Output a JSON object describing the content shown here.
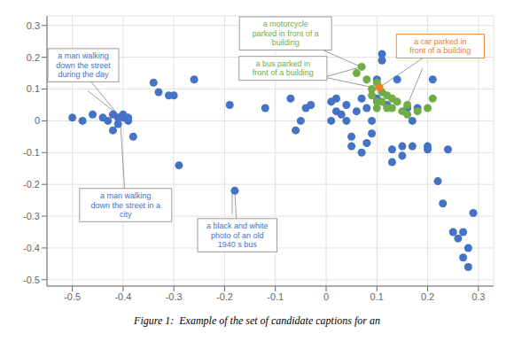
{
  "chart_data": {
    "type": "scatter",
    "series": [
      {
        "color": "#4472C4",
        "values": [
          [
            -0.5,
            0.01
          ],
          [
            -0.48,
            0.0
          ],
          [
            -0.46,
            0.02
          ],
          [
            -0.44,
            0.01
          ],
          [
            -0.43,
            0.0
          ],
          [
            -0.42,
            0.02
          ],
          [
            -0.42,
            -0.03
          ],
          [
            -0.41,
            0.01
          ],
          [
            -0.41,
            -0.01
          ],
          [
            -0.4,
            0.01
          ],
          [
            -0.4,
            0.02
          ],
          [
            -0.39,
            0.0
          ],
          [
            -0.39,
            0.01
          ],
          [
            -0.38,
            -0.05
          ],
          [
            -0.34,
            0.12
          ],
          [
            -0.33,
            0.09
          ],
          [
            -0.31,
            0.08
          ],
          [
            -0.3,
            0.08
          ],
          [
            -0.29,
            -0.14
          ],
          [
            -0.26,
            0.13
          ],
          [
            -0.19,
            0.05
          ],
          [
            -0.18,
            -0.22
          ],
          [
            -0.12,
            0.04
          ],
          [
            -0.07,
            0.07
          ],
          [
            -0.06,
            -0.03
          ],
          [
            -0.05,
            0.0
          ],
          [
            -0.04,
            0.04
          ],
          [
            -0.03,
            0.05
          ],
          [
            0.01,
            0.06
          ],
          [
            0.01,
            0.0
          ],
          [
            0.02,
            0.03
          ],
          [
            0.02,
            0.07
          ],
          [
            0.03,
            0.02
          ],
          [
            0.04,
            0.0
          ],
          [
            0.04,
            0.05
          ],
          [
            0.05,
            -0.05
          ],
          [
            0.05,
            -0.08
          ],
          [
            0.06,
            0.03
          ],
          [
            0.07,
            0.07
          ],
          [
            0.07,
            -0.1
          ],
          [
            0.08,
            0.04
          ],
          [
            0.08,
            -0.07
          ],
          [
            0.09,
            0.0
          ],
          [
            0.09,
            -0.04
          ],
          [
            0.1,
            0.13
          ],
          [
            0.1,
            0.07
          ],
          [
            0.11,
            0.21
          ],
          [
            0.11,
            0.19
          ],
          [
            0.12,
            0.05
          ],
          [
            0.13,
            -0.09
          ],
          [
            0.13,
            -0.13
          ],
          [
            0.14,
            0.13
          ],
          [
            0.15,
            -0.08
          ],
          [
            0.15,
            -0.11
          ],
          [
            0.16,
            0.04
          ],
          [
            0.17,
            0.0
          ],
          [
            0.17,
            -0.08
          ],
          [
            0.18,
            0.04
          ],
          [
            0.2,
            -0.08
          ],
          [
            0.2,
            -0.09
          ],
          [
            0.21,
            0.13
          ],
          [
            0.22,
            -0.19
          ],
          [
            0.23,
            -0.26
          ],
          [
            0.24,
            -0.09
          ],
          [
            0.25,
            -0.35
          ],
          [
            0.26,
            -0.37
          ],
          [
            0.27,
            -0.35
          ],
          [
            0.27,
            -0.43
          ],
          [
            0.28,
            -0.46
          ],
          [
            0.28,
            -0.4
          ],
          [
            0.29,
            -0.29
          ]
        ]
      },
      {
        "color": "#70AD47",
        "values": [
          [
            0.06,
            0.15
          ],
          [
            0.07,
            0.17
          ],
          [
            0.08,
            0.13
          ],
          [
            0.09,
            0.1
          ],
          [
            0.09,
            0.08
          ],
          [
            0.1,
            0.12
          ],
          [
            0.1,
            0.06
          ],
          [
            0.1,
            0.04
          ],
          [
            0.11,
            0.09
          ],
          [
            0.11,
            0.06
          ],
          [
            0.12,
            0.08
          ],
          [
            0.12,
            0.04
          ],
          [
            0.13,
            0.07
          ],
          [
            0.13,
            0.04
          ],
          [
            0.14,
            0.06
          ],
          [
            0.15,
            0.03
          ],
          [
            0.16,
            0.05
          ],
          [
            0.16,
            0.02
          ],
          [
            0.18,
            0.03
          ],
          [
            0.2,
            0.04
          ],
          [
            0.21,
            0.07
          ]
        ]
      },
      {
        "color": "#ED7D31",
        "values": [
          [
            0.105,
            0.105
          ]
        ]
      }
    ],
    "xlim": [
      -0.55,
      0.33
    ],
    "ylim": [
      -0.52,
      0.33
    ],
    "xticks": [
      -0.5,
      -0.4,
      -0.3,
      -0.2,
      -0.1,
      0,
      0.1,
      0.2,
      0.3
    ],
    "yticks": [
      -0.5,
      -0.4,
      -0.3,
      -0.2,
      -0.1,
      0,
      0.1,
      0.2,
      0.3
    ],
    "grid": true,
    "annotations": [
      {
        "text": "a man walking\ndown the street\nduring the day",
        "xy": [
          -0.405,
          0.01
        ],
        "xytext": [
          -0.49,
          0.175
        ],
        "color": "#4472C4",
        "edgecolor": "#909090"
      },
      {
        "text": "a man walking\ndown the street in a\ncity",
        "xy": [
          -0.405,
          -0.01
        ],
        "xytext": [
          -0.395,
          -0.265
        ],
        "color": "#4472C4",
        "edgecolor": "#909090"
      },
      {
        "text": "a motorcycle\nparked in front of a\nbuilding",
        "xy": [
          0.068,
          0.17
        ],
        "xytext": [
          -0.08,
          0.275
        ],
        "color": "#70AD47",
        "edgecolor": "#909090"
      },
      {
        "text": "a bus parked in\nfront of a building",
        "xy": [
          0.092,
          0.105
        ],
        "xytext": [
          -0.085,
          0.165
        ],
        "color": "#70AD47",
        "edgecolor": "#909090"
      },
      {
        "text": "a car parked in\nfront of a building",
        "xy": [
          0.105,
          0.105
        ],
        "xytext": [
          0.225,
          0.235
        ],
        "color": "#ED7D31",
        "edgecolor": "#ED7D31"
      },
      {
        "text": "a black and white\nphoto of an old\n1940 s bus",
        "xy": [
          -0.18,
          -0.22
        ],
        "xytext": [
          -0.175,
          -0.36
        ],
        "color": "#4472C4",
        "edgecolor": "#909090"
      }
    ],
    "connectors": [
      {
        "xy": [
          -0.41,
          0.02
        ],
        "xytext": [
          -0.47,
          0.095
        ]
      },
      {
        "xy": [
          0.07,
          0.17
        ],
        "xytext": [
          -0.01,
          0.135
        ]
      },
      {
        "xy": [
          0.16,
          0.05
        ],
        "xytext": [
          0.19,
          0.165
        ]
      },
      {
        "xy": [
          -0.185,
          -0.23
        ],
        "xytext": [
          -0.185,
          -0.295
        ]
      }
    ],
    "caption": "Figure 1:  Example of the set of candidate captions for an"
  }
}
